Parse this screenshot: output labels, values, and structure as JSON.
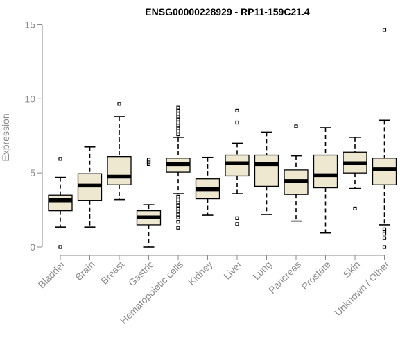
{
  "chart_data": {
    "type": "boxplot",
    "title": "ENSG00000228929 - RP11-159C21.4",
    "xlabel": "",
    "ylabel": "Expression",
    "ylim": [
      0,
      15
    ],
    "yticks": [
      0,
      5,
      10,
      15
    ],
    "style": {
      "box_fill": "#efe8d0",
      "stroke": "#000000",
      "axis_color": "#8a8a8a"
    },
    "categories": [
      "Bladder",
      "Brain",
      "Breast",
      "Gastric",
      "Hematopoietic cells",
      "Kidney",
      "Liver",
      "Lung",
      "Pancreas",
      "Prostate",
      "Skin",
      "Unknown / Other"
    ],
    "boxes": [
      {
        "category": "Bladder",
        "min": 1.35,
        "q1": 2.45,
        "median": 3.15,
        "q3": 3.5,
        "max": 4.7,
        "outliers": [
          0.0,
          5.95
        ]
      },
      {
        "category": "Brain",
        "min": 1.35,
        "q1": 3.15,
        "median": 4.15,
        "q3": 4.95,
        "max": 6.75,
        "outliers": []
      },
      {
        "category": "Breast",
        "min": 3.2,
        "q1": 4.2,
        "median": 4.75,
        "q3": 6.1,
        "max": 8.8,
        "outliers": [
          9.65
        ]
      },
      {
        "category": "Gastric",
        "min": 0.0,
        "q1": 1.5,
        "median": 2.0,
        "q3": 2.45,
        "max": 2.85,
        "outliers": [
          5.6,
          5.75,
          5.9
        ]
      },
      {
        "category": "Hematopoietic cells",
        "min": 3.6,
        "q1": 5.05,
        "median": 5.6,
        "q3": 6.0,
        "max": 7.4,
        "outliers": [
          1.3,
          1.7,
          2.0,
          2.2,
          2.4,
          2.6,
          2.8,
          3.0,
          3.2,
          3.4,
          7.6,
          7.8,
          8.0,
          8.2,
          8.4,
          8.6,
          8.8,
          9.0,
          9.2,
          9.4
        ]
      },
      {
        "category": "Kidney",
        "min": 2.15,
        "q1": 3.25,
        "median": 3.9,
        "q3": 4.6,
        "max": 6.05,
        "outliers": []
      },
      {
        "category": "Liver",
        "min": 3.6,
        "q1": 4.8,
        "median": 5.65,
        "q3": 6.2,
        "max": 7.0,
        "outliers": [
          1.55,
          1.95,
          8.4,
          9.2
        ]
      },
      {
        "category": "Lung",
        "min": 2.2,
        "q1": 4.1,
        "median": 5.6,
        "q3": 6.2,
        "max": 7.75,
        "outliers": []
      },
      {
        "category": "Pancreas",
        "min": 1.75,
        "q1": 3.55,
        "median": 4.45,
        "q3": 5.2,
        "max": 6.15,
        "outliers": [
          8.15
        ]
      },
      {
        "category": "Prostate",
        "min": 0.95,
        "q1": 4.0,
        "median": 4.85,
        "q3": 6.2,
        "max": 8.05,
        "outliers": []
      },
      {
        "category": "Skin",
        "min": 3.95,
        "q1": 5.0,
        "median": 5.65,
        "q3": 6.4,
        "max": 7.4,
        "outliers": [
          2.6
        ]
      },
      {
        "category": "Unknown / Other",
        "min": 1.5,
        "q1": 4.2,
        "median": 5.25,
        "q3": 6.0,
        "max": 8.55,
        "outliers": [
          0.0,
          0.6,
          0.9,
          1.1,
          1.2,
          14.65
        ]
      }
    ]
  }
}
